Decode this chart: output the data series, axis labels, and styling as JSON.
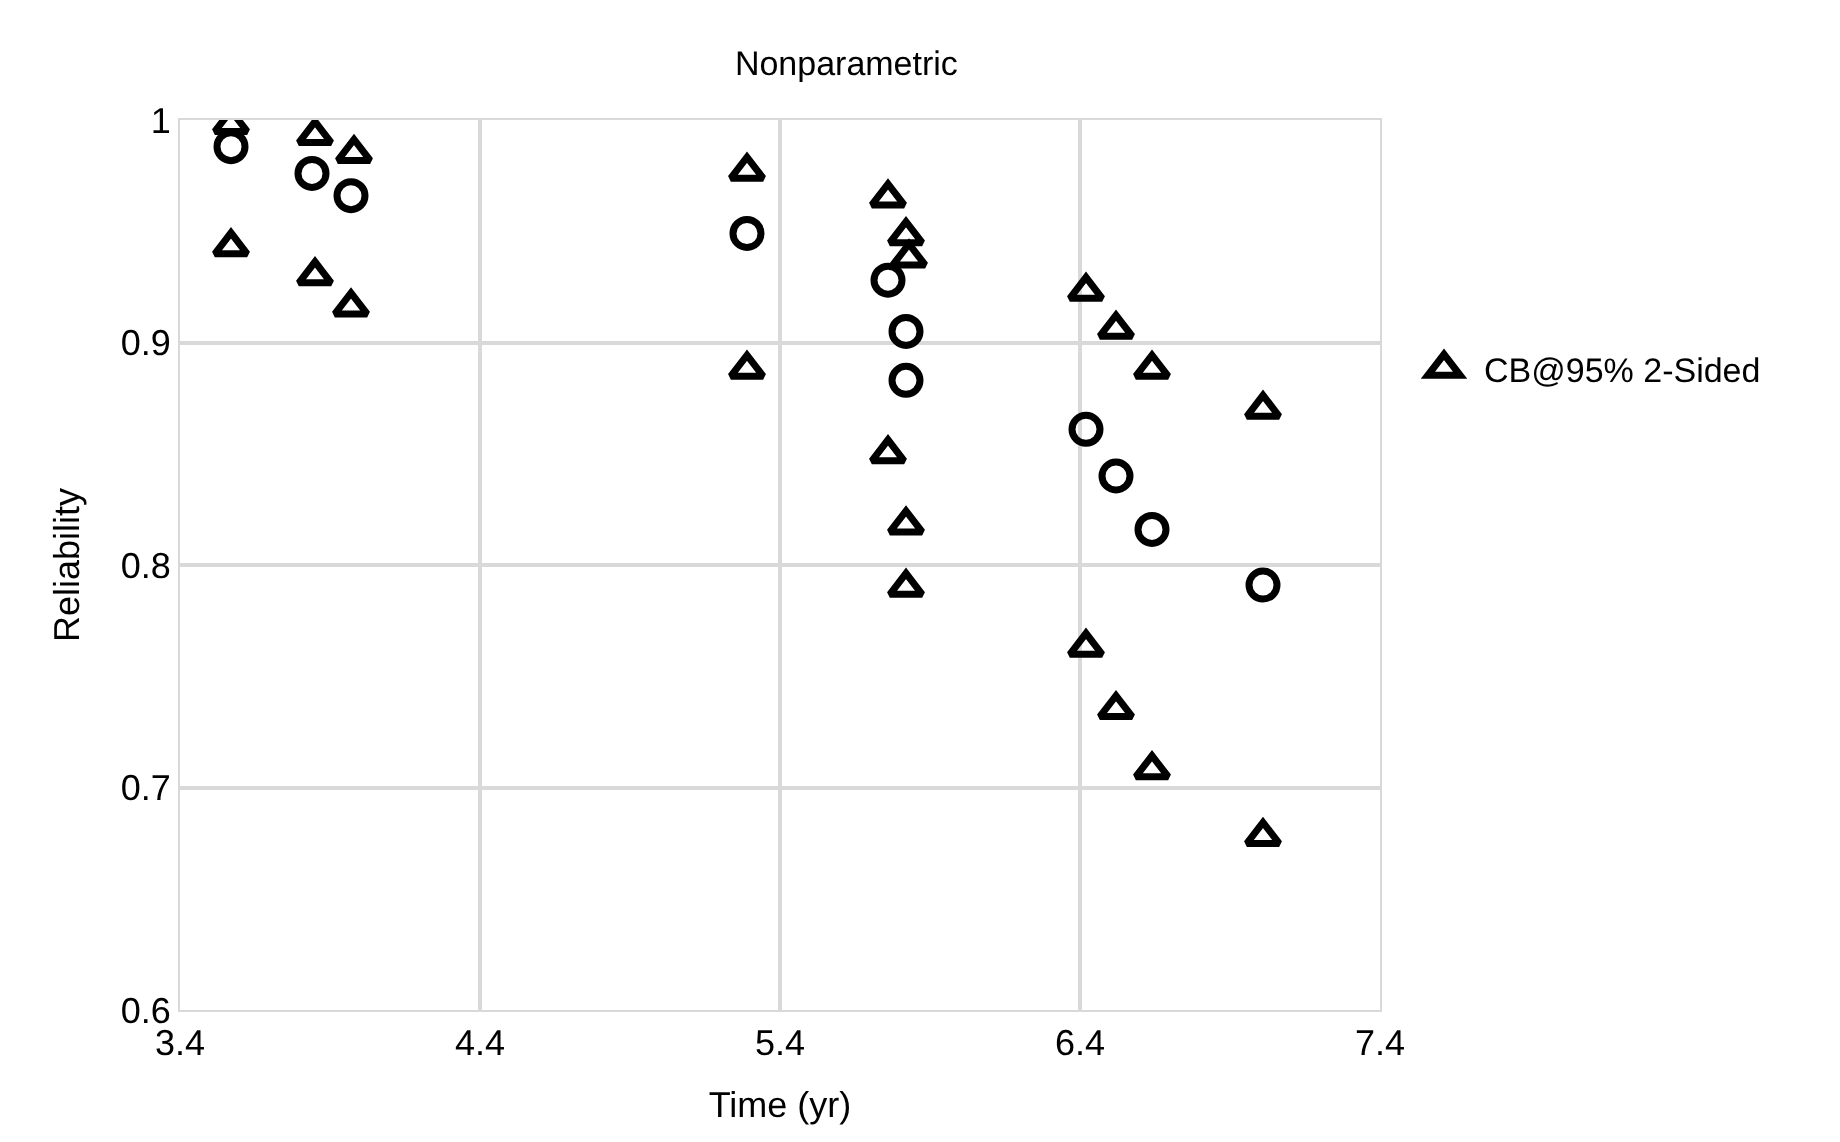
{
  "chart_data": {
    "type": "scatter",
    "title": "Nonparametric",
    "xlabel": "Time (yr)",
    "ylabel": "Reliability",
    "xlim": [
      3.4,
      7.4
    ],
    "xticks": [
      3.4,
      4.4,
      5.4,
      6.4,
      7.4
    ],
    "ylim": [
      0.6,
      1
    ],
    "yticks": [
      {
        "value": 0.6,
        "label": "0.6"
      },
      {
        "value": 0.7,
        "label": "0.7"
      },
      {
        "value": 0.8,
        "label": "0.8"
      },
      {
        "value": 0.9,
        "label": "0.9"
      },
      {
        "value": 1,
        "label": "1"
      }
    ],
    "grid": true,
    "legend": "right",
    "series": [
      {
        "color": "#000000",
        "marker": "circle",
        "x": [
          3.57,
          3.84,
          3.97,
          5.29,
          5.76,
          5.82,
          5.82,
          6.42,
          6.52,
          6.64,
          7.01
        ],
        "values": [
          0.988,
          0.976,
          0.966,
          0.949,
          0.928,
          0.905,
          0.883,
          0.861,
          0.84,
          0.816,
          0.791
        ]
      },
      {
        "name": "CB@95% 2-Sided",
        "color": "#000000",
        "marker": "triangle",
        "x": [
          3.57,
          3.57,
          3.85,
          3.98,
          3.85,
          3.97,
          5.29,
          5.29,
          5.76,
          5.82,
          5.83,
          5.76,
          5.82,
          5.82,
          6.42,
          6.52,
          6.64,
          7.01,
          6.42,
          6.52,
          6.64,
          7.01
        ],
        "values": [
          0.998,
          0.943,
          0.993,
          0.985,
          0.93,
          0.916,
          0.977,
          0.888,
          0.965,
          0.948,
          0.938,
          0.85,
          0.818,
          0.79,
          0.923,
          0.906,
          0.888,
          0.87,
          0.763,
          0.735,
          0.708,
          0.678
        ]
      }
    ]
  }
}
